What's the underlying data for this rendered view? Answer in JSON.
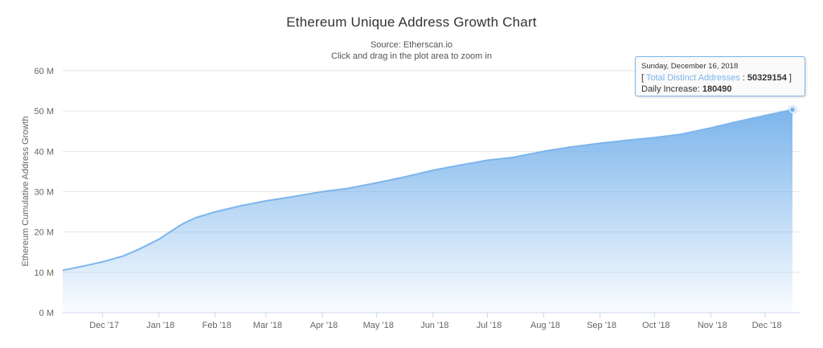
{
  "chart": {
    "title": "Ethereum Unique Address Growth Chart",
    "subtitle_line1": "Source: Etherscan.io",
    "subtitle_line2": "Click and drag in the plot area to zoom in"
  },
  "tooltip": {
    "date": "Sunday, December 16, 2018",
    "open_bracket": "[",
    "series_label": "Total Distinct Addresses",
    "separator": ":",
    "value": "50329154",
    "close_bracket": "]",
    "daily_label": "Daily Increase:",
    "daily_value": "180490"
  },
  "colors": {
    "series": "#7cb5ec",
    "grid": "#e6e6e6",
    "axis_text": "#666666"
  },
  "chart_data": {
    "type": "area",
    "title": "Ethereum Unique Address Growth Chart",
    "subtitle": "Source: Etherscan.io",
    "ylabel": "Ethereum Cumulative Address Growth",
    "xlabel": "",
    "ylim": [
      0,
      60000000
    ],
    "xlim": [
      "2017-11-09",
      "2018-12-20"
    ],
    "grid": true,
    "legend": "none",
    "y_ticks": [
      {
        "value": 0,
        "label": "0 M"
      },
      {
        "value": 10000000,
        "label": "10 M"
      },
      {
        "value": 20000000,
        "label": "20 M"
      },
      {
        "value": 30000000,
        "label": "30 M"
      },
      {
        "value": 40000000,
        "label": "40 M"
      },
      {
        "value": 50000000,
        "label": "50 M"
      },
      {
        "value": 60000000,
        "label": "60 M"
      }
    ],
    "x_ticks": [
      {
        "date": "2017-12-01",
        "label": "Dec '17"
      },
      {
        "date": "2018-01-01",
        "label": "Jan '18"
      },
      {
        "date": "2018-02-01",
        "label": "Feb '18"
      },
      {
        "date": "2018-03-01",
        "label": "Mar '18"
      },
      {
        "date": "2018-04-01",
        "label": "Apr '18"
      },
      {
        "date": "2018-05-01",
        "label": "May '18"
      },
      {
        "date": "2018-06-01",
        "label": "Jun '18"
      },
      {
        "date": "2018-07-01",
        "label": "Jul '18"
      },
      {
        "date": "2018-08-01",
        "label": "Aug '18"
      },
      {
        "date": "2018-09-01",
        "label": "Sep '18"
      },
      {
        "date": "2018-10-01",
        "label": "Oct '18"
      },
      {
        "date": "2018-11-01",
        "label": "Nov '18"
      },
      {
        "date": "2018-12-01",
        "label": "Dec '18"
      }
    ],
    "series": [
      {
        "name": "Total Distinct Addresses",
        "points": [
          {
            "date": "2017-11-09",
            "value": 10500000
          },
          {
            "date": "2017-11-20",
            "value": 11500000
          },
          {
            "date": "2017-12-01",
            "value": 12600000
          },
          {
            "date": "2017-12-12",
            "value": 14000000
          },
          {
            "date": "2017-12-20",
            "value": 15500000
          },
          {
            "date": "2017-12-25",
            "value": 16600000
          },
          {
            "date": "2018-01-01",
            "value": 18200000
          },
          {
            "date": "2018-01-07",
            "value": 20000000
          },
          {
            "date": "2018-01-14",
            "value": 22000000
          },
          {
            "date": "2018-01-21",
            "value": 23500000
          },
          {
            "date": "2018-02-01",
            "value": 25000000
          },
          {
            "date": "2018-02-15",
            "value": 26500000
          },
          {
            "date": "2018-03-01",
            "value": 27700000
          },
          {
            "date": "2018-03-15",
            "value": 28700000
          },
          {
            "date": "2018-04-01",
            "value": 30000000
          },
          {
            "date": "2018-04-15",
            "value": 30800000
          },
          {
            "date": "2018-05-01",
            "value": 32200000
          },
          {
            "date": "2018-05-15",
            "value": 33500000
          },
          {
            "date": "2018-06-01",
            "value": 35300000
          },
          {
            "date": "2018-06-15",
            "value": 36500000
          },
          {
            "date": "2018-07-01",
            "value": 37800000
          },
          {
            "date": "2018-07-15",
            "value": 38500000
          },
          {
            "date": "2018-08-01",
            "value": 40000000
          },
          {
            "date": "2018-08-15",
            "value": 41000000
          },
          {
            "date": "2018-09-01",
            "value": 42000000
          },
          {
            "date": "2018-09-15",
            "value": 42700000
          },
          {
            "date": "2018-10-01",
            "value": 43400000
          },
          {
            "date": "2018-10-15",
            "value": 44200000
          },
          {
            "date": "2018-11-01",
            "value": 45800000
          },
          {
            "date": "2018-11-15",
            "value": 47300000
          },
          {
            "date": "2018-12-01",
            "value": 48900000
          },
          {
            "date": "2018-12-16",
            "value": 50329154
          }
        ]
      }
    ],
    "highlighted_point": {
      "date": "2018-12-16",
      "value": 50329154,
      "daily_increase": 180490
    }
  }
}
